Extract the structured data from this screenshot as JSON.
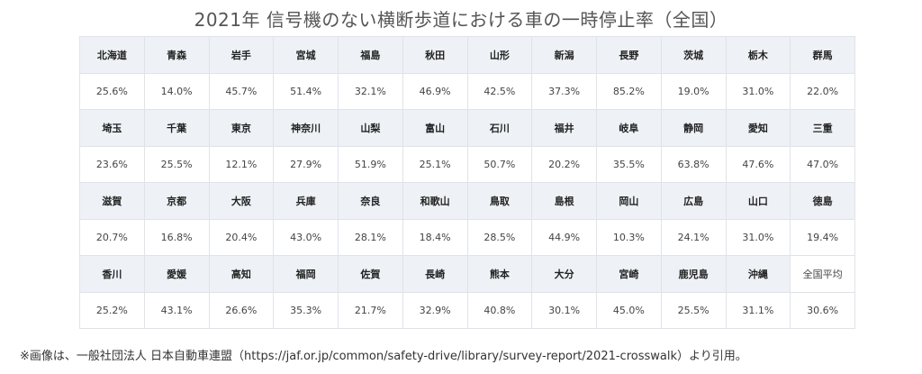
{
  "title": "2021年 信号機のない横断歩道における車の一時停止率（全国）",
  "rows": [
    {
      "names": [
        "北海道",
        "青森",
        "岩手",
        "宮城",
        "福島",
        "秋田",
        "山形",
        "新潟",
        "長野",
        "茨城",
        "栃木",
        "群馬"
      ],
      "values": [
        "25.6%",
        "14.0%",
        "45.7%",
        "51.4%",
        "32.1%",
        "46.9%",
        "42.5%",
        "37.3%",
        "85.2%",
        "19.0%",
        "31.0%",
        "22.0%"
      ]
    },
    {
      "names": [
        "埼玉",
        "千葉",
        "東京",
        "神奈川",
        "山梨",
        "富山",
        "石川",
        "福井",
        "岐阜",
        "静岡",
        "愛知",
        "三重"
      ],
      "values": [
        "23.6%",
        "25.5%",
        "12.1%",
        "27.9%",
        "51.9%",
        "25.1%",
        "50.7%",
        "20.2%",
        "35.5%",
        "63.8%",
        "47.6%",
        "47.0%"
      ]
    },
    {
      "names": [
        "滋賀",
        "京都",
        "大阪",
        "兵庫",
        "奈良",
        "和歌山",
        "鳥取",
        "島根",
        "岡山",
        "広島",
        "山口",
        "徳島"
      ],
      "values": [
        "20.7%",
        "16.8%",
        "20.4%",
        "43.0%",
        "28.1%",
        "18.4%",
        "28.5%",
        "44.9%",
        "10.3%",
        "24.1%",
        "31.0%",
        "19.4%"
      ]
    },
    {
      "names": [
        "香川",
        "愛媛",
        "高知",
        "福岡",
        "佐賀",
        "長崎",
        "熊本",
        "大分",
        "宮崎",
        "鹿児島",
        "沖縄",
        "全国平均"
      ],
      "values": [
        "25.2%",
        "43.1%",
        "26.6%",
        "35.3%",
        "21.7%",
        "32.9%",
        "40.8%",
        "30.1%",
        "45.0%",
        "25.5%",
        "31.1%",
        "30.6%"
      ]
    }
  ],
  "footnote": "※画像は、一般社団法人 日本自動車連盟（https://jaf.or.jp/common/safety-drive/library/survey-report/2021-crosswalk）より引用。"
}
